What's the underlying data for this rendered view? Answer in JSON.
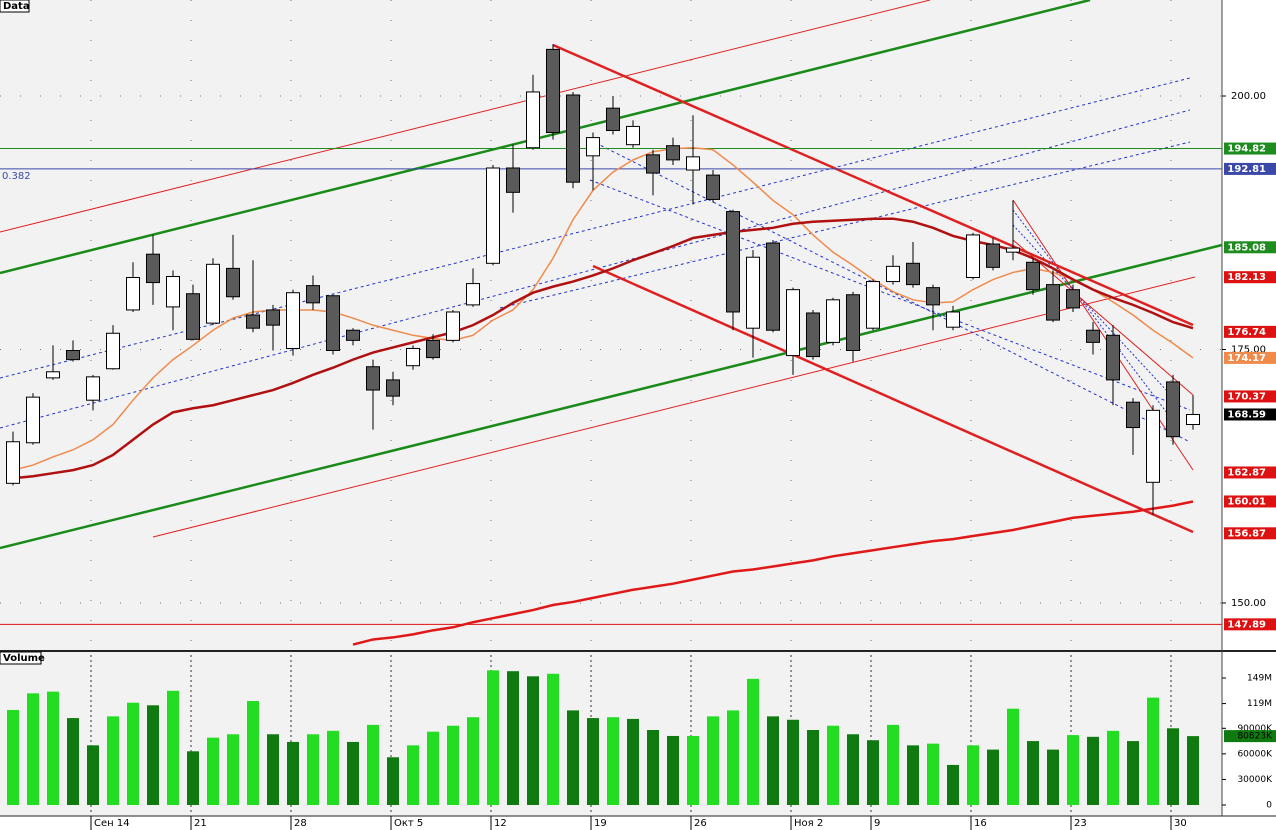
{
  "chart_data": {
    "type": "candlestick",
    "panel_label": "Data",
    "fib_label": "0.382",
    "categories": [
      null,
      null,
      null,
      null,
      "Сен 14",
      null,
      null,
      null,
      null,
      "21",
      null,
      null,
      null,
      null,
      "28",
      null,
      null,
      null,
      null,
      "Окт 5",
      null,
      null,
      null,
      null,
      "12",
      null,
      null,
      null,
      null,
      "19",
      null,
      null,
      null,
      null,
      "26",
      null,
      null,
      null,
      null,
      "Ноя 2",
      null,
      null,
      null,
      "9",
      null,
      null,
      null,
      null,
      "16",
      null,
      null,
      null,
      null,
      "23",
      null,
      null,
      null,
      null,
      "30",
      null
    ],
    "open": [
      161.8,
      165.8,
      172.2,
      174.9,
      170.0,
      173.1,
      178.9,
      184.4,
      179.2,
      180.5,
      177.6,
      183.0,
      178.4,
      178.9,
      175.1,
      181.3,
      180.3,
      176.9,
      173.3,
      172.0,
      173.4,
      175.9,
      175.9,
      179.4,
      183.5,
      192.9,
      194.9,
      204.6,
      200.1,
      194.1,
      198.8,
      195.2,
      194.2,
      195.1,
      192.7,
      192.2,
      188.6,
      177.1,
      185.5,
      174.4,
      178.6,
      175.7,
      180.4,
      177.1,
      181.7,
      183.5,
      181.1,
      177.2,
      182.1,
      185.4,
      184.6,
      183.6,
      181.4,
      180.9,
      176.9,
      176.4,
      169.8,
      161.9,
      171.8,
      167.6
    ],
    "high": [
      166.9,
      170.7,
      175.4,
      175.9,
      172.5,
      177.4,
      183.6,
      186.3,
      182.8,
      181.4,
      184.0,
      186.3,
      183.8,
      179.4,
      180.9,
      182.3,
      180.4,
      177.1,
      174.0,
      172.8,
      175.4,
      176.5,
      178.9,
      183.0,
      193.2,
      195.2,
      202.1,
      205.1,
      200.4,
      196.4,
      200.0,
      197.6,
      194.7,
      195.9,
      198.1,
      192.7,
      188.8,
      184.8,
      185.8,
      181.1,
      178.9,
      180.1,
      180.7,
      181.9,
      184.3,
      185.6,
      181.4,
      179.3,
      186.5,
      186.0,
      189.7,
      184.0,
      182.8,
      181.4,
      177.7,
      177.4,
      170.2,
      169.5,
      172.5,
      170.5
    ],
    "low": [
      161.6,
      165.6,
      172.0,
      173.8,
      169.0,
      173.0,
      178.7,
      179.4,
      176.9,
      175.9,
      177.4,
      179.9,
      176.7,
      174.9,
      174.4,
      178.9,
      174.5,
      175.4,
      167.1,
      169.5,
      173.0,
      174.0,
      175.7,
      179.2,
      183.3,
      188.5,
      194.7,
      195.7,
      190.9,
      190.7,
      196.2,
      194.9,
      190.2,
      193.2,
      189.3,
      189.5,
      176.9,
      174.2,
      176.7,
      172.5,
      174.0,
      175.4,
      173.8,
      176.9,
      181.4,
      181.1,
      176.9,
      176.9,
      181.9,
      182.8,
      183.8,
      180.4,
      177.7,
      178.7,
      174.5,
      169.5,
      164.6,
      158.7,
      165.6,
      167.1
    ],
    "close": [
      165.9,
      170.3,
      172.8,
      174.0,
      172.3,
      176.6,
      182.1,
      181.6,
      182.2,
      176.0,
      183.4,
      180.2,
      177.1,
      177.4,
      180.6,
      179.6,
      174.9,
      175.9,
      171.0,
      170.4,
      175.1,
      174.2,
      178.7,
      181.5,
      192.9,
      190.5,
      200.4,
      196.4,
      191.5,
      195.9,
      196.6,
      197.0,
      192.4,
      193.7,
      194.0,
      189.8,
      178.7,
      184.1,
      176.9,
      180.9,
      174.3,
      179.9,
      174.9,
      181.7,
      183.2,
      181.4,
      179.4,
      178.7,
      186.3,
      183.1,
      185.0,
      180.9,
      177.9,
      179.1,
      175.7,
      172.0,
      167.3,
      169.0,
      166.4,
      168.59
    ],
    "up_color": "#ffffff",
    "down_color": "#5a5a5a",
    "overlays": [
      {
        "color": "#f08a4b",
        "width": 1.5,
        "values": [
          163.1,
          163.6,
          164.4,
          165.1,
          166.1,
          167.6,
          170.0,
          172.2,
          174.0,
          175.4,
          176.9,
          178.1,
          178.7,
          178.9,
          178.9,
          178.9,
          178.7,
          178.1,
          177.4,
          176.9,
          176.4,
          176.1,
          175.9,
          176.4,
          177.9,
          178.9,
          180.9,
          184.0,
          187.8,
          190.7,
          192.5,
          193.7,
          194.5,
          194.8,
          194.9,
          194.7,
          193.2,
          191.5,
          189.7,
          188.3,
          186.3,
          184.6,
          183.3,
          181.9,
          180.7,
          179.9,
          179.6,
          179.7,
          180.9,
          181.9,
          182.6,
          183.0,
          182.6,
          181.9,
          180.9,
          179.7,
          178.4,
          176.9,
          175.6,
          174.17
        ]
      },
      {
        "color": "#b01010",
        "width": 2.5,
        "values": [
          162.3,
          162.5,
          162.8,
          163.1,
          163.6,
          164.6,
          166.1,
          167.6,
          168.8,
          169.2,
          169.5,
          170.0,
          170.5,
          171.0,
          171.7,
          172.5,
          173.2,
          174.0,
          174.7,
          175.2,
          175.7,
          176.2,
          176.7,
          177.4,
          178.4,
          179.6,
          180.6,
          181.2,
          181.7,
          182.3,
          183.0,
          183.8,
          184.5,
          185.2,
          186.0,
          186.3,
          186.6,
          186.8,
          187.0,
          187.4,
          187.6,
          187.7,
          187.8,
          187.9,
          187.9,
          187.6,
          187.0,
          186.2,
          185.7,
          185.3,
          184.8,
          184.0,
          183.0,
          181.9,
          180.9,
          180.1,
          179.4,
          178.6,
          177.7,
          177.1
        ]
      },
      {
        "color": "#e01818",
        "width": 2.5,
        "values": [
          null,
          null,
          null,
          null,
          null,
          null,
          null,
          null,
          null,
          null,
          null,
          null,
          null,
          null,
          null,
          null,
          null,
          145.9,
          146.4,
          146.6,
          146.9,
          147.3,
          147.6,
          148.1,
          148.5,
          148.9,
          149.3,
          149.8,
          150.1,
          150.5,
          150.9,
          151.3,
          151.6,
          151.9,
          152.3,
          152.7,
          153.1,
          153.3,
          153.6,
          153.9,
          154.2,
          154.6,
          154.9,
          155.2,
          155.5,
          155.8,
          156.1,
          156.3,
          156.6,
          156.9,
          157.2,
          157.6,
          158.0,
          158.4,
          158.6,
          158.8,
          159.0,
          159.3,
          159.6,
          160.01
        ]
      }
    ],
    "ylim": [
      145.36,
      209.47
    ],
    "yticks": [
      {
        "value": 150,
        "label": "150.00"
      },
      {
        "value": 175,
        "label": "175.00"
      },
      {
        "value": 200,
        "label": "200.00"
      }
    ],
    "grid": true,
    "levels": [
      {
        "value": 194.82,
        "color": "#1e8c1e",
        "line": true
      },
      {
        "value": 192.81,
        "color": "#3b48a8",
        "line": true
      },
      {
        "value": 185.08,
        "color": "#1e8c1e"
      },
      {
        "value": 182.13,
        "color": "#dd1111"
      },
      {
        "value": 176.74,
        "color": "#dd1111"
      },
      {
        "value": 174.17,
        "color": "#f08a4b"
      },
      {
        "value": 170.37,
        "color": "#dd1111"
      },
      {
        "value": 168.59,
        "color": "#000000"
      },
      {
        "value": 162.87,
        "color": "#dd1111"
      },
      {
        "value": 160.01,
        "color": "#dd1111"
      },
      {
        "value": 156.87,
        "color": "#dd1111"
      },
      {
        "value": 147.89,
        "color": "#dd1111",
        "line": true
      }
    ],
    "volume": {
      "label": "Volume",
      "values": [
        111500000,
        131000000,
        133000000,
        102000000,
        70000000,
        104000000,
        120000000,
        117000000,
        134000000,
        63000000,
        79000000,
        83000000,
        122000000,
        83000000,
        74000000,
        83000000,
        87000000,
        74000000,
        94000000,
        56000000,
        70000000,
        86000000,
        93000000,
        103000000,
        158000000,
        157000000,
        151000000,
        154000000,
        111000000,
        102000000,
        103000000,
        101000000,
        88000000,
        81000000,
        81000000,
        104000000,
        111000000,
        148000000,
        104000000,
        100000000,
        88000000,
        93000000,
        83000000,
        76000000,
        94000000,
        70000000,
        72000000,
        47000000,
        70000000,
        65000000,
        113000000,
        75000000,
        65000000,
        82000000,
        80000000,
        87000000,
        75000000,
        126000000,
        90000000,
        80823000
      ],
      "colors": [
        "#22dd22",
        "#22dd22",
        "#22dd22",
        "#0f7a0f",
        "#0f7a0f",
        "#22dd22",
        "#22dd22",
        "#0f7a0f",
        "#22dd22",
        "#0f7a0f",
        "#22dd22",
        "#22dd22",
        "#22dd22",
        "#0f7a0f",
        "#0f7a0f",
        "#22dd22",
        "#22dd22",
        "#0f7a0f",
        "#22dd22",
        "#0f7a0f",
        "#22dd22",
        "#22dd22",
        "#22dd22",
        "#22dd22",
        "#22dd22",
        "#0f7a0f",
        "#0f7a0f",
        "#22dd22",
        "#0f7a0f",
        "#0f7a0f",
        "#22dd22",
        "#0f7a0f",
        "#0f7a0f",
        "#0f7a0f",
        "#22dd22",
        "#22dd22",
        "#22dd22",
        "#22dd22",
        "#0f7a0f",
        "#0f7a0f",
        "#0f7a0f",
        "#22dd22",
        "#0f7a0f",
        "#0f7a0f",
        "#22dd22",
        "#0f7a0f",
        "#22dd22",
        "#0f7a0f",
        "#22dd22",
        "#0f7a0f",
        "#22dd22",
        "#0f7a0f",
        "#0f7a0f",
        "#22dd22",
        "#0f7a0f",
        "#22dd22",
        "#0f7a0f",
        "#22dd22",
        "#0f7a0f",
        "#0f7a0f"
      ],
      "value_label": "80823K",
      "ylim": [
        0,
        176000000
      ],
      "yticks": [
        0,
        {
          "value": 30000000,
          "label": "30000K"
        },
        {
          "value": 60000000,
          "label": "60000K"
        },
        {
          "value": 90000000,
          "label": "90000K"
        },
        {
          "value": 119000000,
          "label": "119M"
        },
        {
          "value": 149000000,
          "label": "149M"
        }
      ]
    }
  }
}
